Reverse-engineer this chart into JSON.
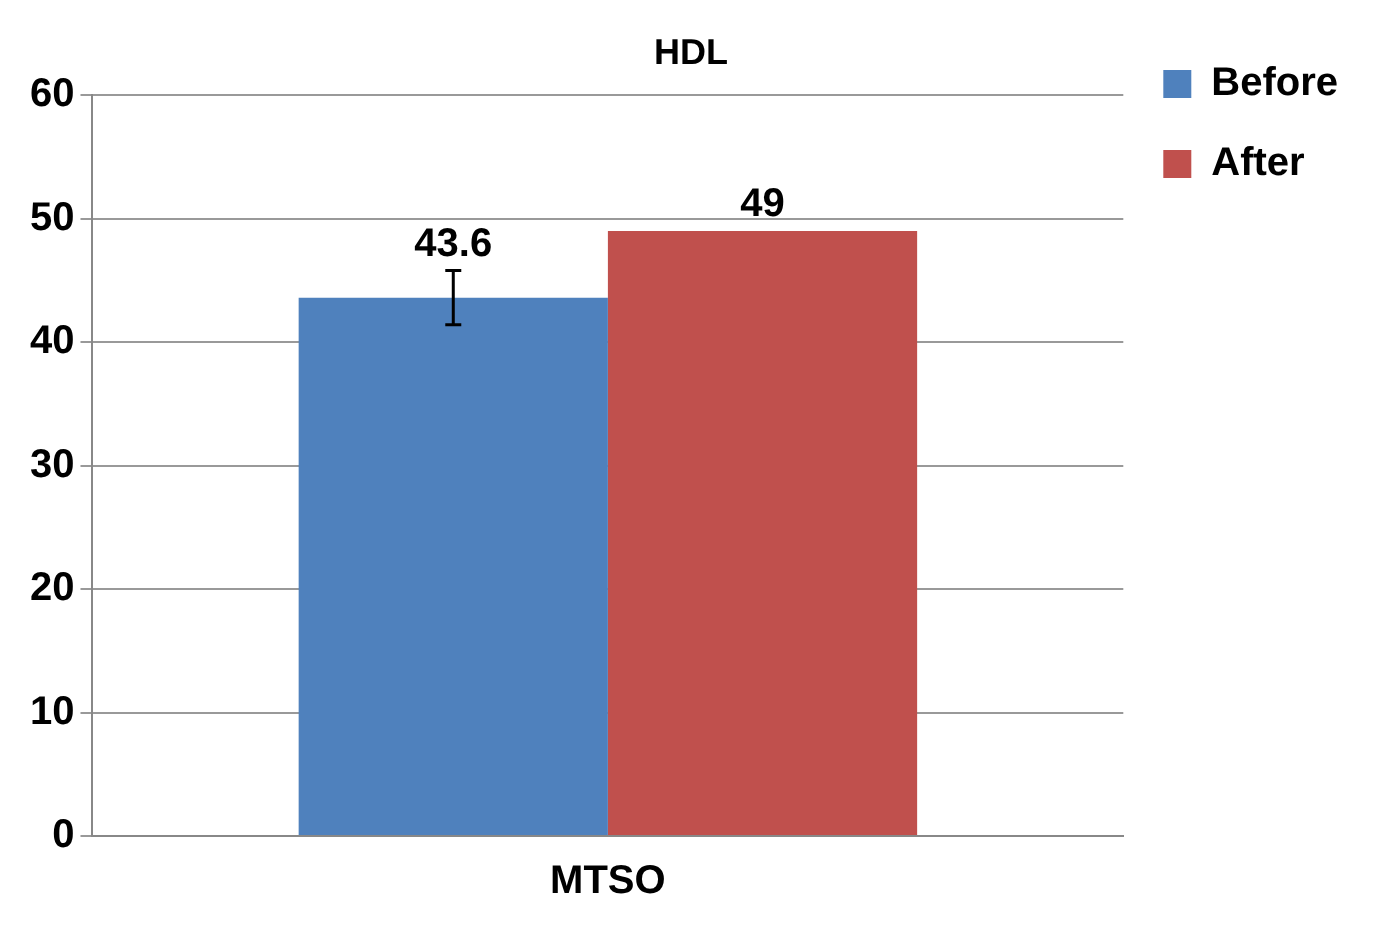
{
  "chart_data": {
    "type": "bar",
    "title": "HDL",
    "categories": [
      "MTSO"
    ],
    "series": [
      {
        "name": "Before",
        "color": "#4f81bd",
        "values": [
          43.6
        ],
        "errors": [
          2.2
        ]
      },
      {
        "name": "After",
        "color": "#c0504d",
        "values": [
          49
        ],
        "errors": [
          null
        ]
      }
    ],
    "ylim": [
      0,
      60
    ],
    "yticks": [
      0,
      10,
      20,
      30,
      40,
      50,
      60
    ],
    "grid": "y",
    "legend": "top right",
    "data_labels": true
  }
}
